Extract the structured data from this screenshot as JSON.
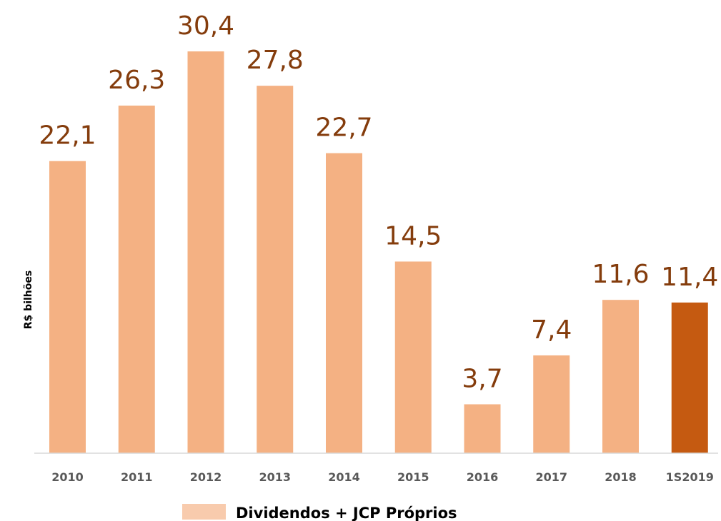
{
  "chart_data": {
    "type": "bar",
    "title": "",
    "xlabel": "",
    "ylabel": "R$ bilhões",
    "categories": [
      "2010",
      "2011",
      "2012",
      "2013",
      "2014",
      "2015",
      "2016",
      "2017",
      "2018",
      "1S2019"
    ],
    "value_labels": [
      "22,1",
      "26,3",
      "30,4",
      "27,8",
      "22,7",
      "14,5",
      "3,7",
      "7,4",
      "11,6",
      "11,4"
    ],
    "series": [
      {
        "name": "Dividendos + JCP Próprios",
        "values": [
          22.1,
          26.3,
          30.4,
          27.8,
          22.7,
          14.5,
          3.7,
          7.4,
          11.6,
          11.4
        ]
      }
    ],
    "ylim": [
      0,
      30.4
    ],
    "grid": false,
    "legend_position": "bottom",
    "colors": {
      "bar": "#f4b183",
      "highlight_bar": "#c55a11",
      "value_label": "#843c0c",
      "legend_swatch": "#f8cbad",
      "tick_label": "#595959",
      "axis_line": "#d9d9d9"
    },
    "highlight_index": 9
  }
}
